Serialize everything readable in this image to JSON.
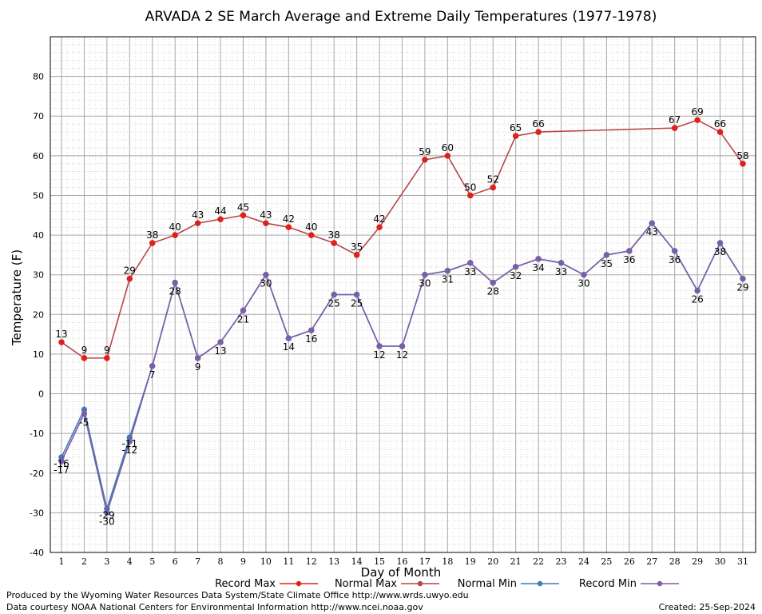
{
  "chart_data": {
    "type": "line",
    "title": "ARVADA 2 SE March Average and Extreme Daily Temperatures (1977-1978)",
    "xlabel": "Day of Month",
    "ylabel": "Temperature (F)",
    "xlim": [
      1,
      31
    ],
    "ylim": [
      -40,
      90
    ],
    "yticks": [
      -40,
      -30,
      -20,
      -10,
      0,
      10,
      20,
      30,
      40,
      50,
      60,
      70,
      80
    ],
    "x": [
      1,
      2,
      3,
      4,
      5,
      6,
      7,
      8,
      9,
      10,
      11,
      12,
      13,
      14,
      15,
      16,
      17,
      18,
      19,
      20,
      21,
      22,
      23,
      24,
      25,
      26,
      27,
      28,
      29,
      30,
      31
    ],
    "grid": true,
    "legend_position": "bottom",
    "series": [
      {
        "name": "Record Max",
        "color": "#e0201b",
        "values": [
          13,
          9,
          9,
          29,
          38,
          40,
          43,
          44,
          45,
          43,
          42,
          40,
          38,
          35,
          42,
          null,
          59,
          60,
          50,
          52,
          65,
          66,
          null,
          null,
          null,
          null,
          null,
          67,
          69,
          66,
          58
        ],
        "labels": [
          true,
          true,
          true,
          true,
          true,
          true,
          true,
          true,
          true,
          true,
          true,
          true,
          true,
          true,
          true,
          false,
          true,
          true,
          true,
          true,
          true,
          true,
          false,
          false,
          false,
          false,
          false,
          true,
          true,
          true,
          true
        ]
      },
      {
        "name": "Normal Max",
        "color": "#b5474b",
        "values": [
          13,
          9,
          9,
          29,
          38,
          40,
          43,
          44,
          45,
          43,
          42,
          40,
          38,
          35,
          42,
          null,
          59,
          60,
          50,
          52,
          65,
          66,
          null,
          null,
          null,
          null,
          null,
          67,
          69,
          66,
          58
        ]
      },
      {
        "name": "Normal Min",
        "color": "#3d7cb5",
        "values": [
          -16,
          -4,
          -29,
          -11,
          7,
          28,
          9,
          13,
          21,
          30,
          14,
          16,
          25,
          25,
          12,
          12,
          30,
          31,
          33,
          28,
          32,
          34,
          33,
          30,
          35,
          36,
          43,
          36,
          26,
          38,
          29
        ]
      },
      {
        "name": "Record Min",
        "color": "#7a5ea6",
        "values": [
          -17,
          -5,
          -30,
          -12,
          7,
          28,
          9,
          13,
          21,
          30,
          14,
          16,
          25,
          25,
          12,
          12,
          30,
          31,
          33,
          28,
          32,
          34,
          33,
          30,
          35,
          36,
          43,
          36,
          26,
          38,
          29
        ]
      }
    ],
    "extra_labels": [
      {
        "day": 1,
        "text": "-16"
      },
      {
        "day": 3,
        "text": "-29"
      },
      {
        "day": 4,
        "text": "-11"
      }
    ]
  },
  "footer": {
    "left_line1": "Produced by the Wyoming Water Resources Data System/State Climate Office http://www.wrds.uwyo.edu",
    "left_line2": "Data courtesy NOAA National Centers for Environmental Information http://www.ncei.noaa.gov",
    "created": "Created:  25-Sep-2024"
  }
}
